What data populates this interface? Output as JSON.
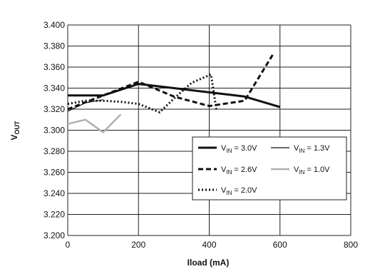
{
  "chart_data": {
    "type": "line",
    "xlabel": "Iload (mA)",
    "ylabel_main": "V",
    "ylabel_sub": "OUT",
    "xlim": [
      0,
      800
    ],
    "ylim": [
      3.2,
      3.4
    ],
    "x_ticks": [
      0,
      200,
      400,
      600,
      800
    ],
    "x_tick_labels": [
      "0",
      "200",
      "400",
      "600",
      "800"
    ],
    "y_ticks": [
      3.2,
      3.22,
      3.24,
      3.26,
      3.28,
      3.3,
      3.32,
      3.34,
      3.36,
      3.38,
      3.4
    ],
    "y_tick_labels": [
      "3.200",
      "3.220",
      "3.240",
      "3.260",
      "3.280",
      "3.300",
      "3.320",
      "3.340",
      "3.360",
      "3.380",
      "3.400"
    ],
    "grid": true,
    "legend_placement": "center-right",
    "series": [
      {
        "name_main": "V",
        "name_sub": "IN",
        "name_rest": " = 3.0V",
        "style": "solid-thick",
        "color": "#111111",
        "x": [
          0,
          100,
          200,
          300,
          400,
          500,
          600
        ],
        "y": [
          3.333,
          3.333,
          3.344,
          3.34,
          3.336,
          3.332,
          3.322
        ]
      },
      {
        "name_main": "V",
        "name_sub": "IN",
        "name_rest": " = 2.6V",
        "style": "dashed",
        "color": "#111111",
        "x": [
          0,
          100,
          200,
          300,
          400,
          500,
          580
        ],
        "y": [
          3.32,
          3.333,
          3.346,
          3.332,
          3.323,
          3.328,
          3.372
        ]
      },
      {
        "name_main": "V",
        "name_sub": "IN",
        "name_rest": " = 2.0V",
        "style": "dotted",
        "color": "#111111",
        "x": [
          0,
          50,
          100,
          150,
          200,
          260,
          300,
          350,
          405,
          420
        ],
        "y": [
          3.325,
          3.328,
          3.328,
          3.327,
          3.325,
          3.317,
          3.33,
          3.345,
          3.353,
          3.32
        ]
      },
      {
        "name_main": "V",
        "name_sub": "IN",
        "name_rest": " = 1.3V",
        "style": "solid-thin",
        "color": "#111111",
        "x": [
          0,
          50,
          100
        ],
        "y": [
          3.318,
          3.326,
          3.329
        ]
      },
      {
        "name_main": "V",
        "name_sub": "IN",
        "name_rest": " = 1.0V",
        "style": "solid-gray",
        "color": "#b0b0b0",
        "x": [
          0,
          50,
          100,
          150
        ],
        "y": [
          3.306,
          3.31,
          3.298,
          3.315
        ]
      }
    ]
  }
}
